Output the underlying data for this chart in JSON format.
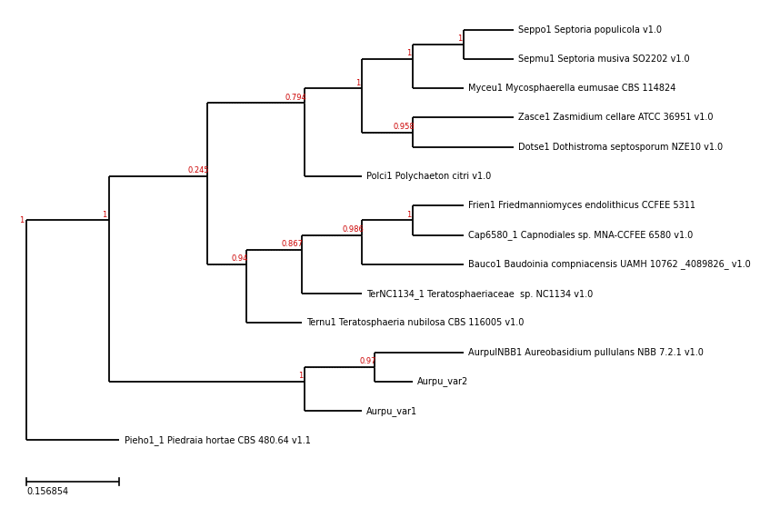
{
  "title": "",
  "scale_bar_value": 0.156854,
  "scale_bar_label": "0.156854",
  "background_color": "#ffffff",
  "line_color": "#000000",
  "bootstrap_color": "#cc0000",
  "taxa": [
    "Seppo1 Septoria populicola v1.0",
    "Sepmu1 Septoria musiva SO2202 v1.0",
    "Myceu1 Mycosphaerella eumusae CBS 114824",
    "Zasce1 Zasmidium cellare ATCC 36951 v1.0",
    "Dotse1 Dothistroma septosporum NZE10 v1.0",
    "Polci1 Polychaeton citri v1.0",
    "Frien1 Friedmanniomyces endolithicus CCFEE 5311",
    "Cap6580_1 Capnodiales sp. MNA-CCFEE 6580 v1.0",
    "Bauco1 Baudoinia compniacensis UAMH 10762 _4089826_ v1.0",
    "TerNC1134_1 Teratosphaeriaceae  sp. NC1134 v1.0",
    "Ternu1 Teratosphaeria nubilosa CBS 116005 v1.0",
    "AurpulNBB1 Aureobasidium pullulans NBB 7.2.1 v1.0",
    "Aurpu_var2",
    "Aurpu_var1",
    "Pieho1_1 Piedraia hortae CBS 480.64 v1.1"
  ]
}
